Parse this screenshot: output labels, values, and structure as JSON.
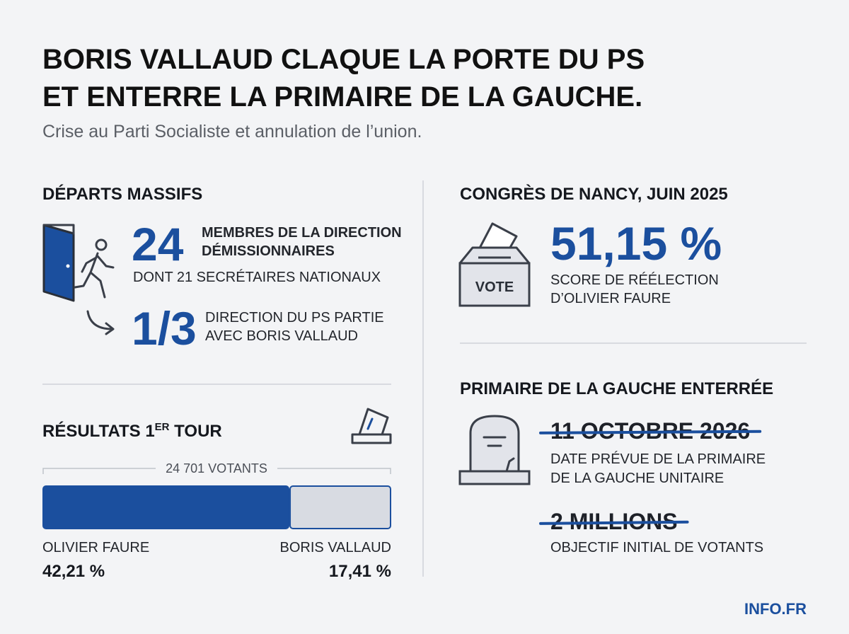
{
  "header": {
    "title_lines": [
      "BORIS VALLAUD CLAQUE LA PORTE DU PS",
      "ET ENTERRE LA PRIMAIRE DE LA GAUCHE."
    ],
    "subtitle": "Crise au Parti Socialiste et annulation de l’union."
  },
  "departs": {
    "heading": "DÉPARTS MASSIFS",
    "stat1": {
      "number": "24",
      "lines": [
        "MEMBRES DE LA DIRECTION",
        "DÉMISSIONNAIRES"
      ],
      "detail": "DONT 21 SECRÉTAIRES NATIONAUX"
    },
    "stat2": {
      "number": "1/3",
      "lines": [
        "DIRECTION DU PS PARTIE",
        "AVEC BORIS VALLAUD"
      ]
    }
  },
  "results": {
    "heading_parts": [
      "RÉSULTATS 1",
      "ER",
      " TOUR"
    ],
    "voters": "24 701 VOTANTS",
    "candidates": [
      {
        "name": "OLIVIER FAURE",
        "value": 42.21,
        "label": "42,21 %",
        "color": "#1b4f9e"
      },
      {
        "name": "BORIS VALLAUD",
        "value": 17.41,
        "label": "17,41 %",
        "color": "#d8dbe2"
      }
    ]
  },
  "congres": {
    "heading": "CONGRÈS DE NANCY, JUIN 2025",
    "icon_label": "VOTE",
    "number": "51,15 %",
    "lines": [
      "SCORE DE RÉÉLECTION",
      "D’OLIVIER FAURE"
    ]
  },
  "primaire": {
    "heading": "PRIMAIRE DE LA GAUCHE ENTERRÉE",
    "items": [
      {
        "struck": "11 OCTOBRE 2026",
        "lines": [
          "DATE PRÉVUE DE LA PRIMAIRE",
          "DE LA GAUCHE UNITAIRE"
        ]
      },
      {
        "struck": "2 MILLIONS",
        "lines": [
          "OBJECTIF INITIAL DE VOTANTS"
        ]
      }
    ]
  },
  "footer": "INFO.FR"
}
